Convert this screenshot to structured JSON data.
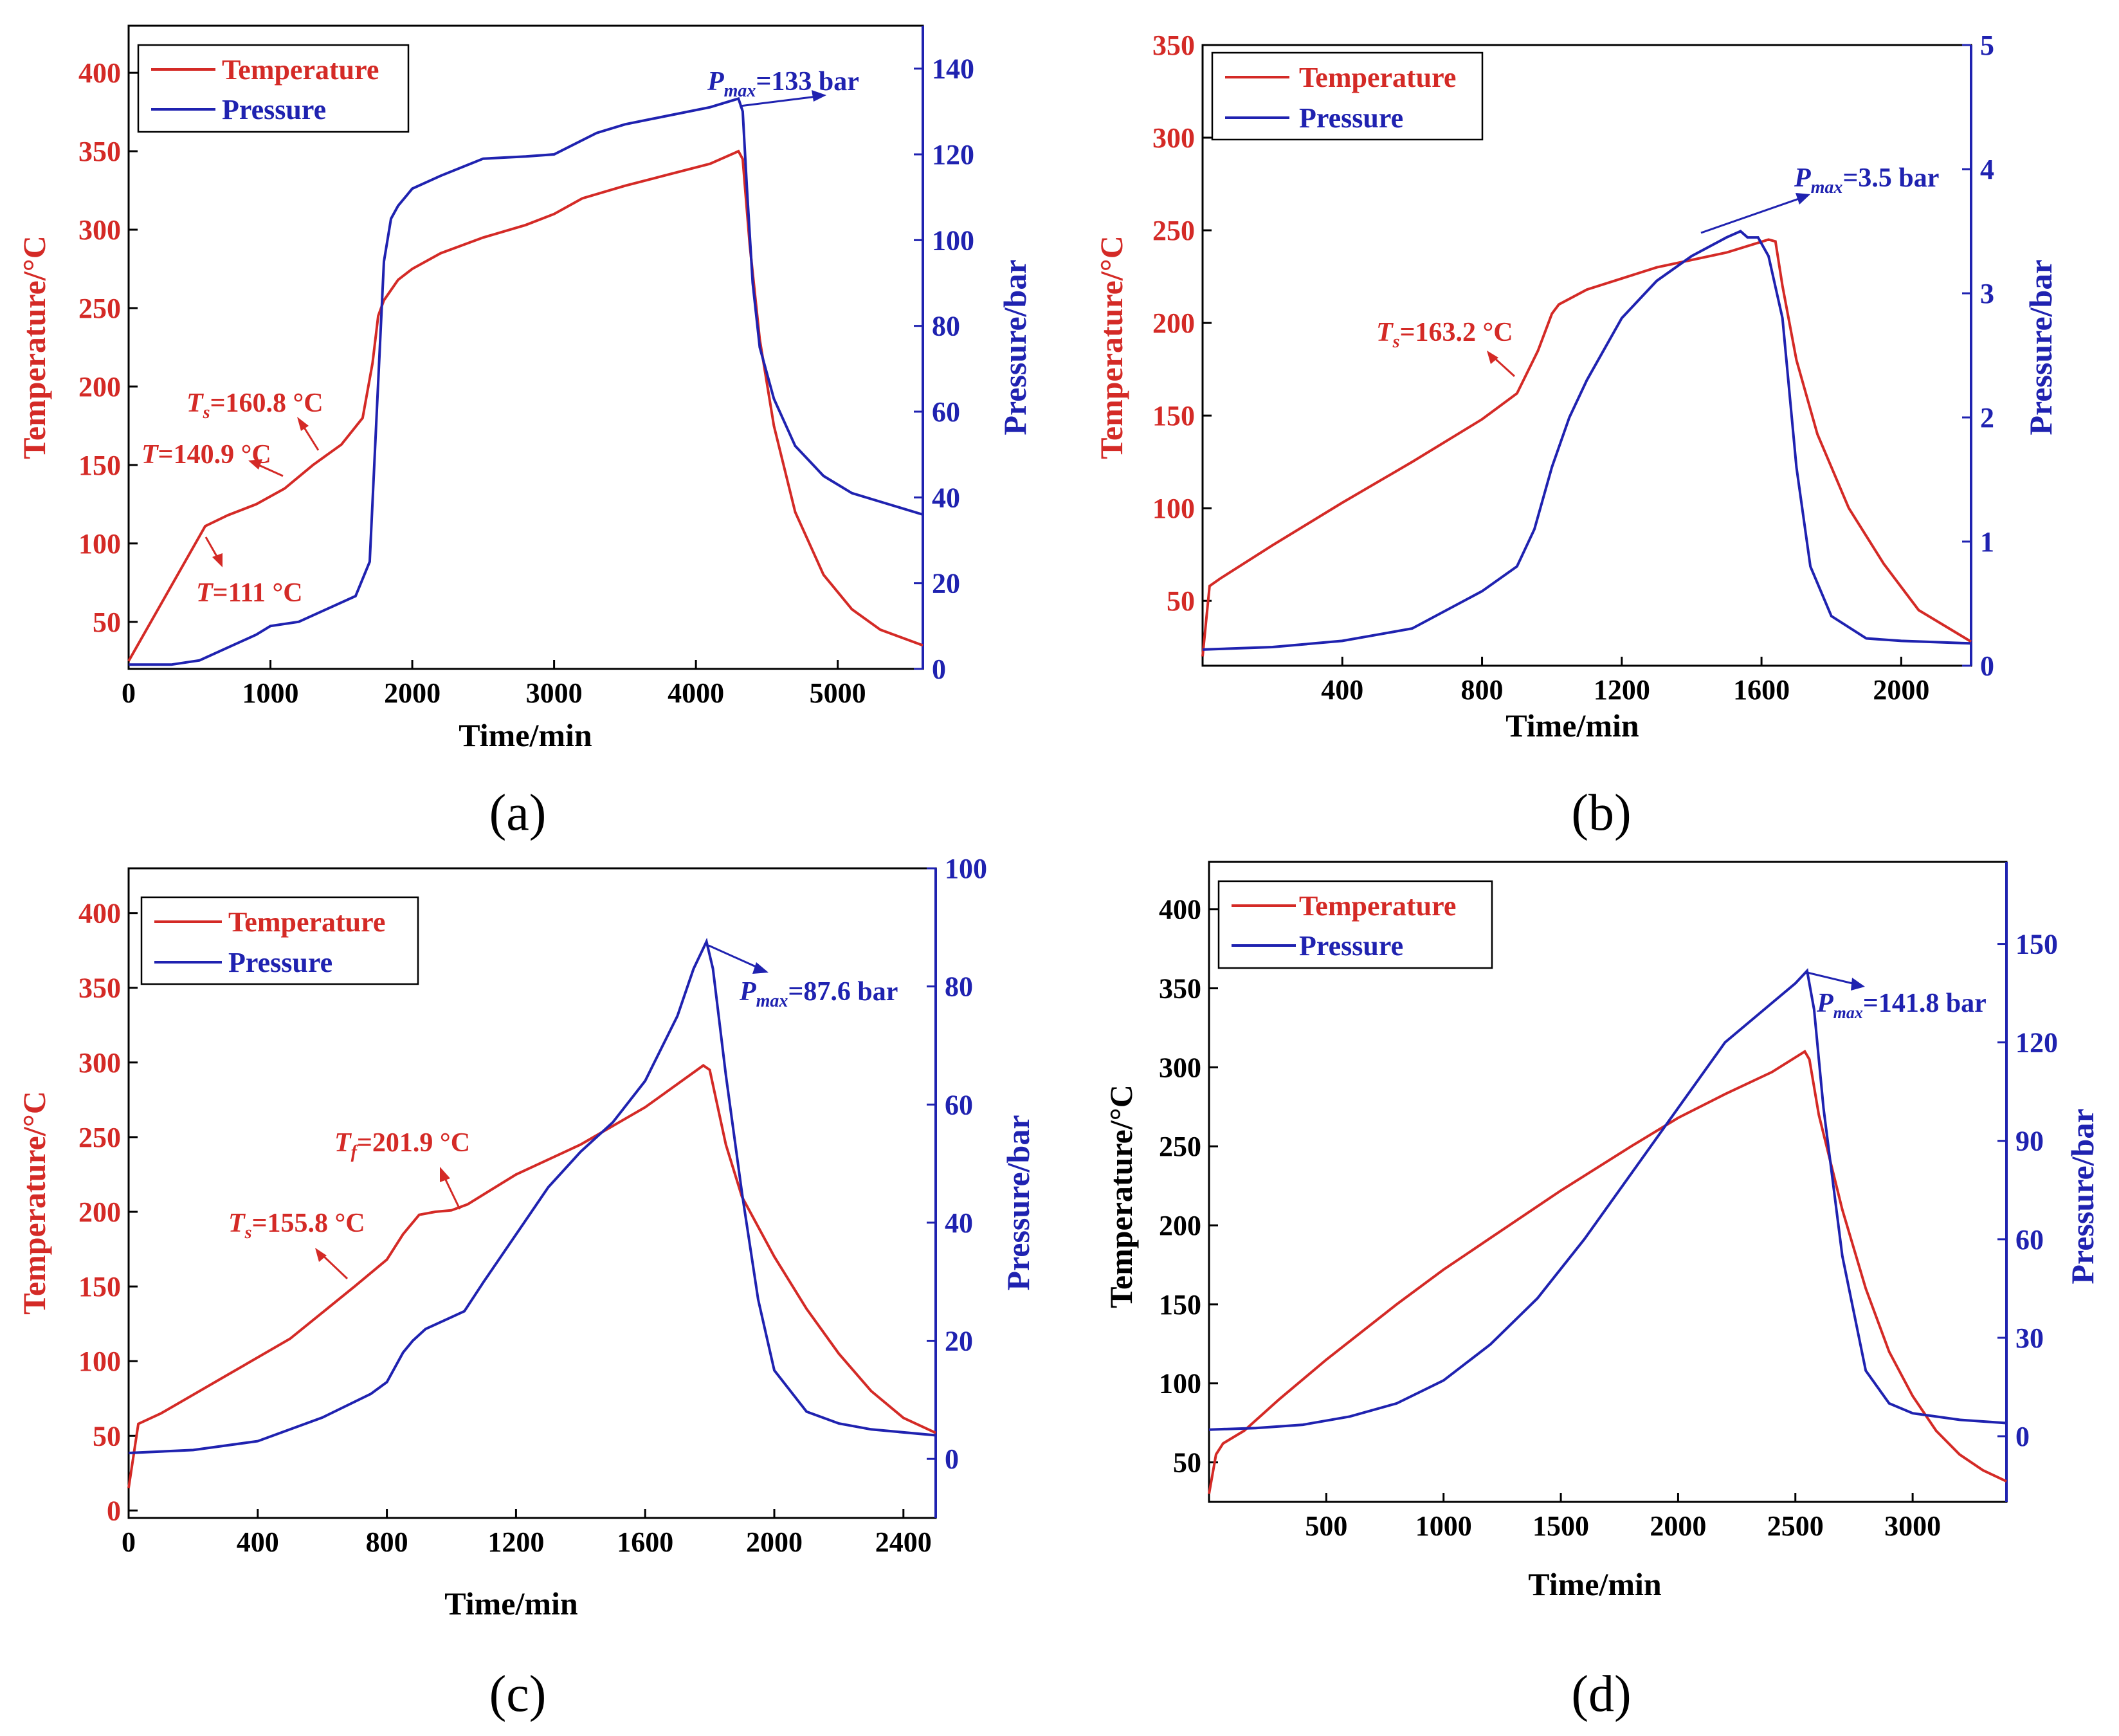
{
  "colors": {
    "temperature": "#d42a26",
    "pressure": "#1f22b0",
    "axis": "#000000"
  },
  "chart_data": [
    {
      "type": "line",
      "panel_label": "(a)",
      "xlabel": "Time/min",
      "ylabel_left": "Temperature/°C",
      "ylabel_right": "Pressure/bar",
      "xlim": [
        0,
        5600
      ],
      "ylim_left": [
        20,
        430
      ],
      "ylim_right": [
        0,
        150
      ],
      "xticks": [
        0,
        1000,
        2000,
        3000,
        4000,
        5000
      ],
      "yticks_left": [
        50,
        100,
        150,
        200,
        250,
        300,
        350,
        400
      ],
      "yticks_right": [
        0,
        20,
        40,
        60,
        80,
        100,
        120,
        140
      ],
      "legend": [
        "Temperature",
        "Pressure"
      ],
      "series": [
        {
          "name": "Temperature",
          "axis": "left",
          "x": [
            0,
            540,
            700,
            900,
            1100,
            1300,
            1500,
            1650,
            1720,
            1760,
            1800,
            1900,
            2000,
            2200,
            2500,
            2800,
            3000,
            3200,
            3500,
            3800,
            4100,
            4300,
            4330,
            4380,
            4450,
            4550,
            4700,
            4900,
            5100,
            5300,
            5600
          ],
          "y": [
            25,
            111,
            118,
            125,
            135,
            150,
            163,
            180,
            215,
            245,
            255,
            268,
            275,
            285,
            295,
            303,
            310,
            320,
            328,
            335,
            342,
            350,
            345,
            290,
            230,
            175,
            120,
            80,
            58,
            45,
            35
          ]
        },
        {
          "name": "Pressure",
          "axis": "right",
          "x": [
            0,
            300,
            500,
            700,
            900,
            1000,
            1200,
            1400,
            1600,
            1700,
            1750,
            1800,
            1850,
            1900,
            2000,
            2200,
            2500,
            2800,
            3000,
            3300,
            3500,
            3800,
            4100,
            4300,
            4330,
            4360,
            4400,
            4450,
            4550,
            4700,
            4900,
            5100,
            5300,
            5600
          ],
          "y": [
            1,
            1,
            2,
            5,
            8,
            10,
            11,
            14,
            17,
            25,
            60,
            95,
            105,
            108,
            112,
            115,
            119,
            119.5,
            120,
            125,
            127,
            129,
            131,
            133,
            130,
            112,
            90,
            75,
            63,
            52,
            45,
            41,
            39,
            36
          ]
        }
      ],
      "annotations": [
        {
          "text": "P",
          "sub": "max",
          "rest": "=133 bar"
        },
        {
          "text": "T",
          "sub": "s",
          "rest": "=160.8 °C"
        },
        {
          "text": "T",
          "sub": "",
          "rest": "=140.9 °C"
        },
        {
          "text": "T",
          "sub": "",
          "rest": "=111 °C"
        }
      ]
    },
    {
      "type": "line",
      "panel_label": "(b)",
      "xlabel": "Time/min",
      "ylabel_left": "Temperature/°C",
      "ylabel_right": "Pressure/bar",
      "xlim": [
        0,
        2200
      ],
      "ylim_left": [
        15,
        350
      ],
      "ylim_right": [
        0,
        5
      ],
      "xticks": [
        400,
        800,
        1200,
        1600,
        2000
      ],
      "yticks_left": [
        50,
        100,
        150,
        200,
        250,
        300,
        350
      ],
      "yticks_right": [
        0,
        1,
        2,
        3,
        4,
        5
      ],
      "legend": [
        "Temperature",
        "Pressure"
      ],
      "series": [
        {
          "name": "Temperature",
          "axis": "left",
          "x": [
            0,
            20,
            50,
            200,
            400,
            600,
            800,
            900,
            960,
            1000,
            1020,
            1100,
            1300,
            1500,
            1620,
            1640,
            1660,
            1700,
            1760,
            1850,
            1950,
            2050,
            2200
          ],
          "y": [
            20,
            58,
            62,
            80,
            103,
            125,
            148,
            162,
            185,
            205,
            210,
            218,
            230,
            238,
            245,
            244,
            220,
            180,
            140,
            100,
            70,
            45,
            28
          ]
        },
        {
          "name": "Pressure",
          "axis": "right",
          "x": [
            0,
            200,
            400,
            600,
            800,
            900,
            950,
            1000,
            1050,
            1100,
            1200,
            1300,
            1400,
            1500,
            1540,
            1560,
            1590,
            1620,
            1660,
            1700,
            1740,
            1800,
            1900,
            2000,
            2200
          ],
          "y": [
            0.13,
            0.15,
            0.2,
            0.3,
            0.6,
            0.8,
            1.1,
            1.6,
            2.0,
            2.3,
            2.8,
            3.1,
            3.3,
            3.45,
            3.5,
            3.45,
            3.45,
            3.3,
            2.8,
            1.6,
            0.8,
            0.4,
            0.22,
            0.2,
            0.18
          ]
        }
      ],
      "annotations": [
        {
          "text": "P",
          "sub": "max",
          "rest": "=3.5 bar"
        },
        {
          "text": "T",
          "sub": "s",
          "rest": "=163.2 °C"
        }
      ]
    },
    {
      "type": "line",
      "panel_label": "(c)",
      "xlabel": "Time/min",
      "ylabel_left": "Temperature/°C",
      "ylabel_right": "Pressure/bar",
      "xlim": [
        0,
        2500
      ],
      "ylim_left": [
        -5,
        430
      ],
      "ylim_right": [
        -10,
        100
      ],
      "xticks": [
        0,
        400,
        800,
        1200,
        1600,
        2000,
        2400
      ],
      "yticks_left": [
        0,
        50,
        100,
        150,
        200,
        250,
        300,
        350,
        400
      ],
      "yticks_right": [
        0,
        20,
        40,
        60,
        80,
        100
      ],
      "legend": [
        "Temperature",
        "Pressure"
      ],
      "series": [
        {
          "name": "Temperature",
          "axis": "left",
          "x": [
            0,
            30,
            100,
            300,
            500,
            700,
            800,
            850,
            900,
            950,
            1000,
            1050,
            1200,
            1400,
            1600,
            1780,
            1800,
            1850,
            1900,
            2000,
            2100,
            2200,
            2300,
            2400,
            2500
          ],
          "y": [
            15,
            58,
            65,
            90,
            115,
            150,
            168,
            185,
            198,
            200,
            201,
            205,
            225,
            245,
            270,
            298,
            295,
            245,
            210,
            170,
            135,
            105,
            80,
            62,
            52
          ]
        },
        {
          "name": "Pressure",
          "axis": "right",
          "x": [
            0,
            200,
            400,
            600,
            750,
            800,
            850,
            880,
            920,
            1000,
            1040,
            1100,
            1200,
            1300,
            1400,
            1500,
            1600,
            1700,
            1750,
            1790,
            1810,
            1850,
            1900,
            1950,
            2000,
            2100,
            2200,
            2300,
            2500
          ],
          "y": [
            1,
            1.5,
            3,
            7,
            11,
            13,
            18,
            20,
            22,
            24,
            25,
            30,
            38,
            46,
            52,
            57,
            64,
            75,
            83,
            87.6,
            83,
            65,
            45,
            27,
            15,
            8,
            6,
            5,
            4
          ]
        }
      ],
      "annotations": [
        {
          "text": "P",
          "sub": "max",
          "rest": "=87.6 bar"
        },
        {
          "text": "T",
          "sub": "f",
          "rest": "=201.9 °C"
        },
        {
          "text": "T",
          "sub": "s",
          "rest": "=155.8 °C"
        }
      ]
    },
    {
      "type": "line",
      "panel_label": "(d)",
      "xlabel": "Time/min",
      "ylabel_left": "Temperature/°C",
      "ylabel_right": "Pressure/bar",
      "xlim": [
        0,
        3400
      ],
      "ylim_left": [
        25,
        430
      ],
      "ylim_right": [
        -20,
        175
      ],
      "xticks": [
        500,
        1000,
        1500,
        2000,
        2500,
        3000
      ],
      "yticks_left": [
        50,
        100,
        150,
        200,
        250,
        300,
        350,
        400
      ],
      "yticks_right": [
        0,
        30,
        60,
        90,
        120,
        150
      ],
      "legend": [
        "Temperature",
        "Pressure"
      ],
      "series": [
        {
          "name": "Temperature",
          "axis": "left",
          "x": [
            0,
            30,
            60,
            150,
            300,
            500,
            800,
            1000,
            1200,
            1500,
            1800,
            2000,
            2200,
            2400,
            2540,
            2560,
            2600,
            2700,
            2800,
            2900,
            3000,
            3100,
            3200,
            3300,
            3400
          ],
          "y": [
            30,
            55,
            62,
            70,
            90,
            115,
            150,
            172,
            192,
            222,
            250,
            268,
            283,
            297,
            310,
            305,
            270,
            210,
            160,
            120,
            92,
            70,
            55,
            45,
            38
          ]
        },
        {
          "name": "Pressure",
          "axis": "right",
          "x": [
            0,
            200,
            400,
            600,
            800,
            1000,
            1200,
            1400,
            1600,
            1800,
            2000,
            2200,
            2400,
            2500,
            2550,
            2580,
            2620,
            2700,
            2800,
            2900,
            3000,
            3200,
            3400
          ],
          "y": [
            2,
            2.5,
            3.5,
            6,
            10,
            17,
            28,
            42,
            60,
            80,
            100,
            120,
            132,
            138,
            141.8,
            130,
            100,
            55,
            20,
            10,
            7,
            5,
            4
          ]
        }
      ],
      "annotations": [
        {
          "text": "P",
          "sub": "max",
          "rest": "=141.8 bar"
        }
      ]
    }
  ]
}
